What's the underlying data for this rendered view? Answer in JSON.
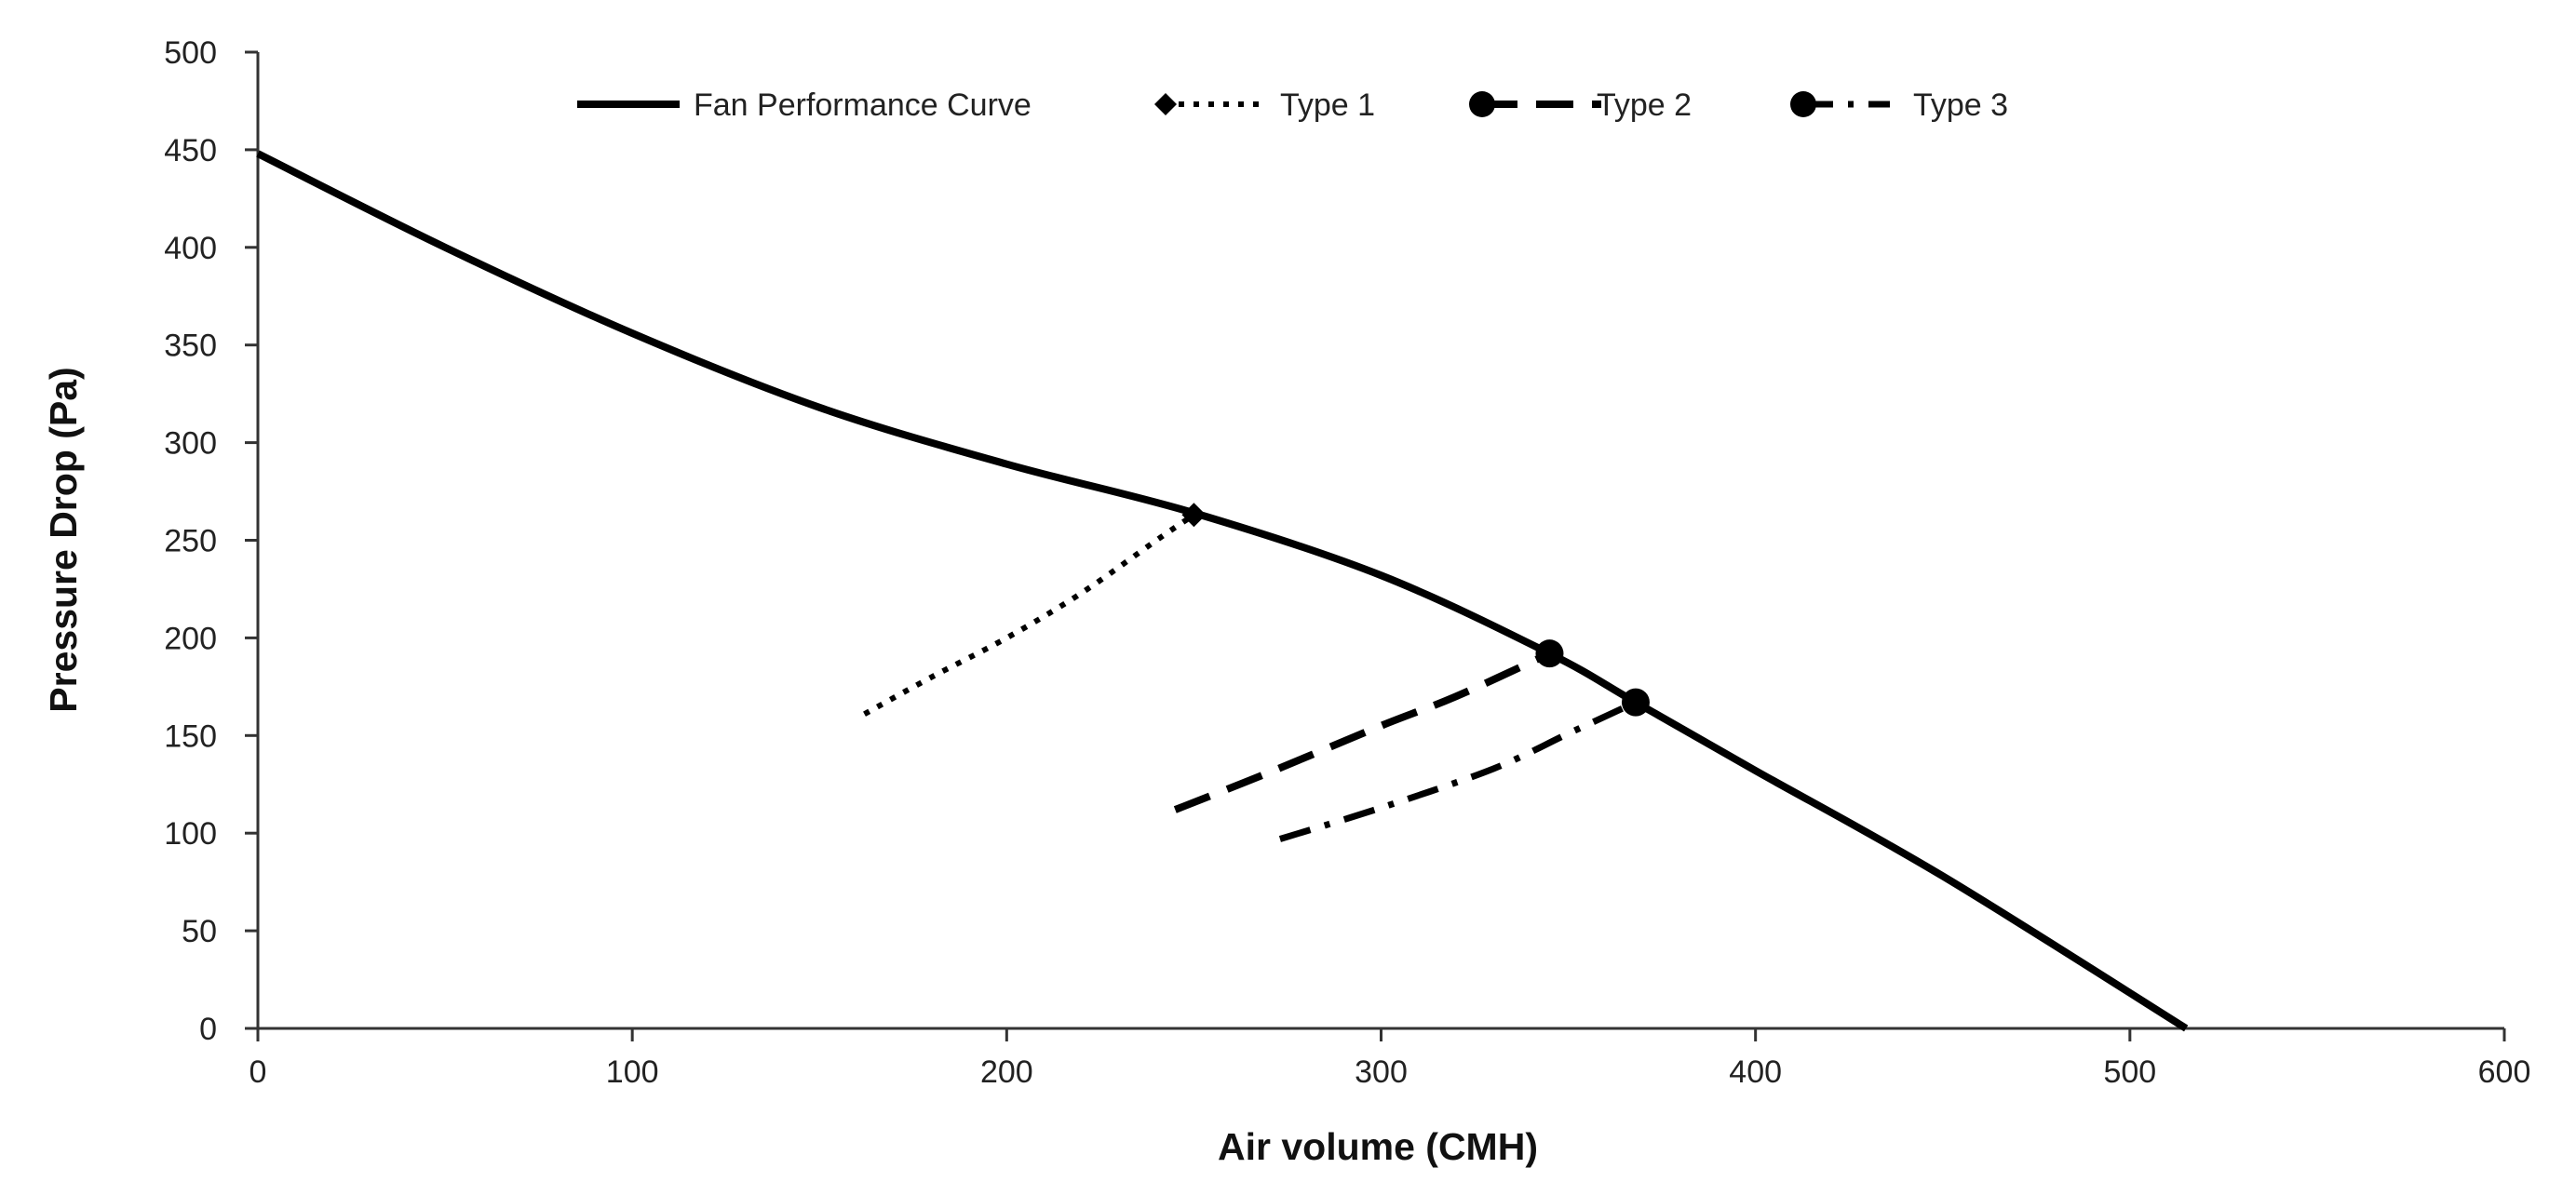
{
  "chart_data": {
    "type": "line",
    "title": "",
    "xlabel": "Air volume (CMH)",
    "ylabel": "Pressure  Drop (Pa)",
    "xlim": [
      0,
      600
    ],
    "ylim": [
      0,
      500
    ],
    "x_ticks": [
      0,
      100,
      200,
      300,
      400,
      500,
      600
    ],
    "y_ticks": [
      0,
      50,
      100,
      150,
      200,
      250,
      300,
      350,
      400,
      450,
      500
    ],
    "grid": false,
    "legend_position": "top",
    "series": [
      {
        "name": "Fan Performance Curve",
        "style": "solid",
        "marker": "none",
        "x": [
          0,
          50,
          100,
          150,
          200,
          250,
          300,
          345,
          368,
          400,
          450,
          515
        ],
        "y": [
          448,
          400,
          356,
          318,
          289,
          264,
          232,
          192,
          167,
          132,
          78,
          0
        ]
      },
      {
        "name": "Type 1",
        "style": "dotted",
        "marker": "diamond",
        "marker_at": "last",
        "x": [
          162,
          180,
          200,
          220,
          240,
          250
        ],
        "y": [
          161,
          180,
          200,
          223,
          250,
          263
        ]
      },
      {
        "name": "Type 2",
        "style": "dashed",
        "marker": "circle",
        "marker_at": "last",
        "x": [
          245,
          270,
          300,
          320,
          345
        ],
        "y": [
          112,
          131,
          155,
          170,
          192
        ]
      },
      {
        "name": "Type 3",
        "style": "dashdot",
        "marker": "circle",
        "marker_at": "last",
        "x": [
          273,
          300,
          330,
          350,
          368
        ],
        "y": [
          97,
          113,
          133,
          151,
          167
        ]
      }
    ]
  }
}
